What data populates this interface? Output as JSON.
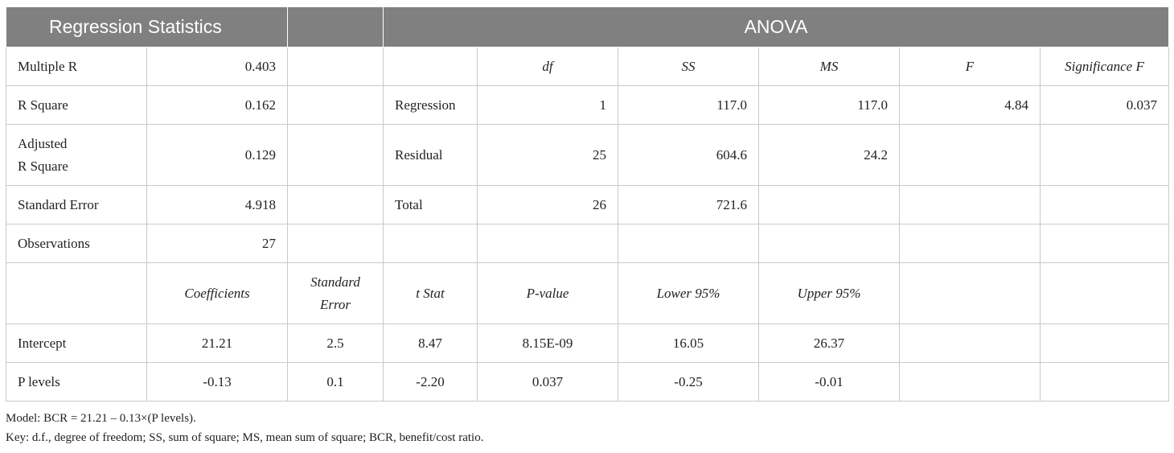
{
  "headers": {
    "regression_statistics": "Regression Statistics",
    "anova": "ANOVA"
  },
  "stats": {
    "multiple_r": {
      "label": "Multiple R",
      "value": "0.403"
    },
    "r_square": {
      "label": "R Square",
      "value": "0.162"
    },
    "adj_r_square": {
      "label_1": "Adjusted",
      "label_2": "R Square",
      "value": "0.129"
    },
    "std_error": {
      "label": "Standard Error",
      "value": "4.918"
    },
    "observations": {
      "label": "Observations",
      "value": "27"
    }
  },
  "anova": {
    "columns": {
      "df": "df",
      "ss": "SS",
      "ms": "MS",
      "f": "F",
      "sig_f": "Significance F"
    },
    "regression": {
      "label": "Regression",
      "df": "1",
      "ss": "117.0",
      "ms": "117.0",
      "f": "4.84",
      "sig_f": "0.037"
    },
    "residual": {
      "label": "Residual",
      "df": "25",
      "ss": "604.6",
      "ms": "24.2"
    },
    "total": {
      "label": "Total",
      "df": "26",
      "ss": "721.6"
    }
  },
  "coefficients": {
    "columns": {
      "coef": "Coefficients",
      "se_1": "Standard",
      "se_2": "Error",
      "t": "t Stat",
      "p": "P-value",
      "lower": "Lower 95%",
      "upper": "Upper 95%"
    },
    "intercept": {
      "label": "Intercept",
      "coef": "21.21",
      "se": "2.5",
      "t": "8.47",
      "p": "8.15E-09",
      "lower": "16.05",
      "upper": "26.37"
    },
    "p_levels": {
      "label": "P levels",
      "coef": "-0.13",
      "se": "0.1",
      "t": "-2.20",
      "p": "0.037",
      "lower": "-0.25",
      "upper": "-0.01"
    }
  },
  "notes": {
    "model": "Model: BCR = 21.21 – 0.13×(P levels).",
    "key": "Key: d.f., degree of freedom; SS, sum of square; MS, mean sum of square; BCR, benefit/cost ratio."
  }
}
